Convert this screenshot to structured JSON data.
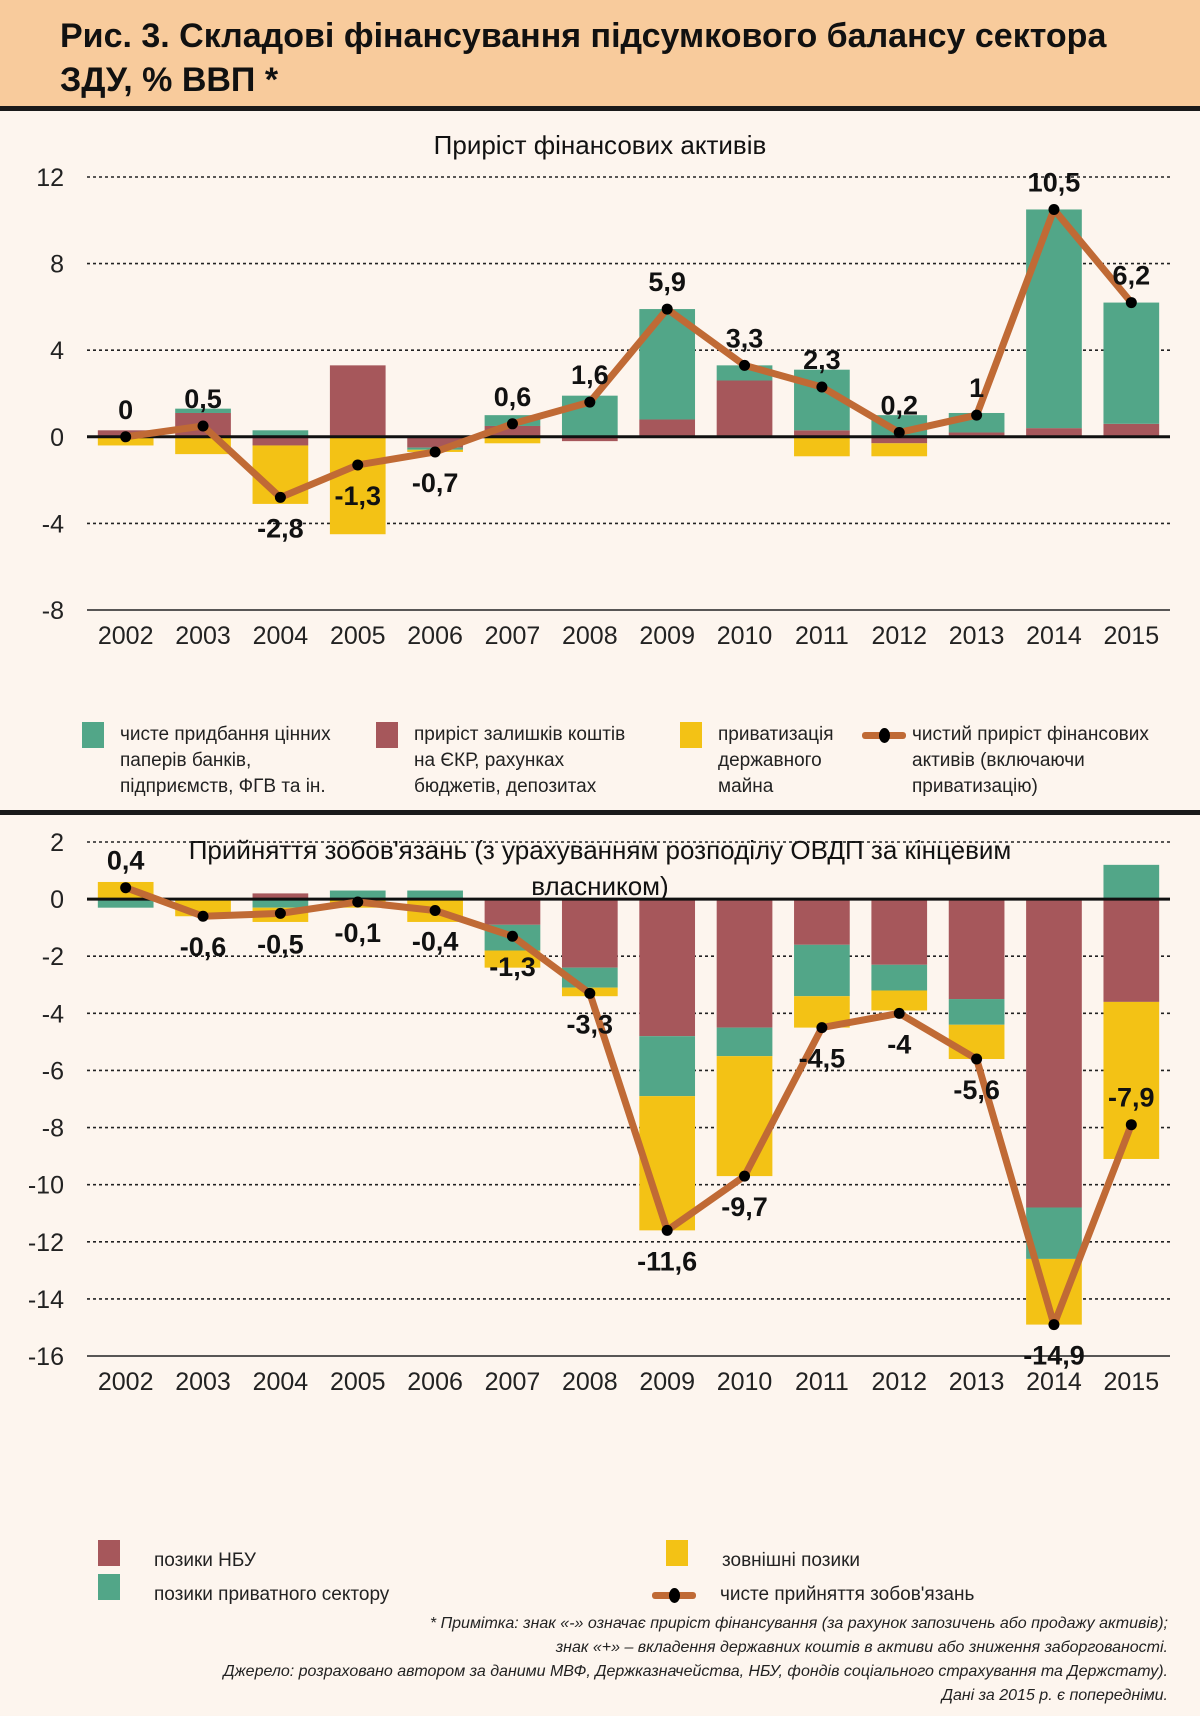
{
  "header": {
    "title": "Рис. 3. Складові фінансування підсумкового балансу сектора ЗДУ, % ВВП *"
  },
  "colors": {
    "green": "#52a688",
    "red": "#a6575b",
    "yellow": "#f3c215",
    "line": "#c06a35",
    "marker": "#000000"
  },
  "chart_data": [
    {
      "type": "bar",
      "stacked": true,
      "title": "Приріст фінансових активів",
      "xlabel": "",
      "ylabel": "",
      "ylim": [
        -8,
        12
      ],
      "yticks": [
        12,
        8,
        4,
        0,
        -4,
        -8
      ],
      "ytick_labels": [
        "12",
        "8",
        "4",
        "0",
        "-4",
        "-8"
      ],
      "grid": true,
      "categories": [
        "2002",
        "2003",
        "2004",
        "2005",
        "2006",
        "2007",
        "2008",
        "2009",
        "2010",
        "2011",
        "2012",
        "2013",
        "2014",
        "2015"
      ],
      "series": [
        {
          "name": "приріст залишків коштів на ЄКР, рахунках бюджетів, депозитах",
          "color": "red",
          "values": [
            0.3,
            1.1,
            -0.4,
            3.3,
            -0.5,
            0.5,
            -0.2,
            0.8,
            2.6,
            0.3,
            -0.3,
            0.2,
            0.4,
            0.6
          ]
        },
        {
          "name": "чисте придбання цінних паперів банків, підприємств, ФГВ та ін.",
          "color": "green",
          "values": [
            0,
            0.2,
            0.3,
            0,
            -0.1,
            0.5,
            1.9,
            5.1,
            0.7,
            2.8,
            1.0,
            0.9,
            10.1,
            5.6
          ]
        },
        {
          "name": "приватизація державного майна",
          "color": "yellow",
          "values": [
            -0.4,
            -0.8,
            -2.7,
            -4.5,
            -0.1,
            -0.3,
            0,
            0,
            0,
            -0.9,
            -0.6,
            0,
            0,
            0
          ]
        }
      ],
      "line": {
        "name": "чистий приріст фінансових активів (включаючи приватизацію)",
        "values": [
          0,
          0.5,
          -2.8,
          -1.3,
          -0.7,
          0.6,
          1.6,
          5.9,
          3.3,
          2.3,
          0.2,
          1,
          10.5,
          6.2
        ],
        "labels": [
          "0",
          "0,5",
          "-2,8",
          "-1,3",
          "-0,7",
          "0,6",
          "1,6",
          "5,9",
          "3,3",
          "2,3",
          "0,2",
          "1",
          "10,5",
          "6,2"
        ],
        "label_pos": [
          "above",
          "above",
          "below",
          "below",
          "below",
          "above",
          "above",
          "above",
          "above",
          "above",
          "above",
          "above",
          "above",
          "above"
        ]
      },
      "legend": {
        "placement": "bottom",
        "items": [
          {
            "color": "green",
            "lines": [
              "чисте придбання цінних",
              " паперів банків,",
              "підприємств, ФГВ та ін."
            ]
          },
          {
            "color": "red",
            "lines": [
              "приріст залишків коштів",
              "на ЄКР, рахунках",
              "бюджетів, депозитах"
            ]
          },
          {
            "color": "yellow",
            "lines": [
              "приватизація",
              "державного",
              "майна"
            ]
          },
          {
            "type": "line",
            "lines": [
              "чистий приріст фінансових",
              "активів (включаючи",
              "приватизацію)"
            ]
          }
        ]
      }
    },
    {
      "type": "bar",
      "stacked": true,
      "title": "Прийняття зобов'язань (з урахуванням розподілу ОВДП за кінцевим власником)",
      "title_lines": [
        "Прийняття зобов'язань (з урахуванням розподілу ОВДП за кінцевим",
        "власником)"
      ],
      "xlabel": "",
      "ylabel": "",
      "ylim": [
        -16,
        2
      ],
      "yticks": [
        2,
        0,
        -2,
        -4,
        -6,
        -8,
        -10,
        -12,
        -14,
        -16
      ],
      "ytick_labels": [
        "2",
        "0",
        "-2",
        "-4",
        "-6",
        "-8",
        "-10",
        "-12",
        "-14",
        "-16"
      ],
      "grid": true,
      "categories": [
        "2002",
        "2003",
        "2004",
        "2005",
        "2006",
        "2007",
        "2008",
        "2009",
        "2010",
        "2011",
        "2012",
        "2013",
        "2014",
        "2015"
      ],
      "series": [
        {
          "name": "позики НБУ",
          "color": "red",
          "values": [
            0,
            0,
            0.2,
            0,
            0,
            -0.9,
            -2.4,
            -4.8,
            -4.5,
            -1.6,
            -2.3,
            -3.5,
            -10.8,
            -3.6
          ]
        },
        {
          "name": "позики приватного сектору",
          "color": "green",
          "values": [
            -0.3,
            0,
            -0.3,
            0.3,
            0.3,
            -0.9,
            -0.7,
            -2.1,
            -1.0,
            -1.8,
            -0.9,
            -0.9,
            -1.8,
            1.2
          ]
        },
        {
          "name": "зовнішні позики",
          "color": "yellow",
          "values": [
            0.6,
            -0.6,
            -0.5,
            -0.3,
            -0.8,
            -0.6,
            -0.3,
            -4.7,
            -4.2,
            -1.1,
            -0.7,
            -1.2,
            -2.3,
            -5.5
          ]
        }
      ],
      "line": {
        "name": "чисте прийняття зобов'язань",
        "values": [
          0.4,
          -0.6,
          -0.5,
          -0.1,
          -0.4,
          -1.3,
          -3.3,
          -11.6,
          -9.7,
          -4.5,
          -4,
          -5.6,
          -14.9,
          -7.9
        ],
        "labels": [
          "0,4",
          "-0,6",
          "-0,5",
          "-0,1",
          "-0,4",
          "-1,3",
          "-3,3",
          "-11,6",
          "-9,7",
          "-4,5",
          "-4",
          "-5,6",
          "-14,9",
          "-7,9"
        ],
        "label_pos": [
          "above",
          "below",
          "below",
          "below",
          "below",
          "below",
          "below",
          "below",
          "below",
          "below",
          "below",
          "below",
          "below",
          "above"
        ]
      },
      "legend": {
        "placement": "bottom",
        "items": [
          {
            "color": "red",
            "lines": [
              "позики НБУ"
            ]
          },
          {
            "color": "yellow",
            "lines": [
              "зовнішні позики"
            ]
          },
          {
            "color": "green",
            "lines": [
              "позики приватного сектору"
            ]
          },
          {
            "type": "line",
            "lines": [
              "чисте прийняття зобов'язань"
            ]
          }
        ]
      }
    }
  ],
  "footnotes": [
    "* Примітка: знак «-» означає приріст фінансування (за рахунок запозичень або продажу активів);",
    "знак «+» – вкладення державних коштів в активи або зниження заборгованості.",
    "Джерело: розраховано автором за даними МВФ, Держказначейства, НБУ, фондів соціального страхування та Держстату).",
    "Дані за 2015 р. є попередніми."
  ]
}
